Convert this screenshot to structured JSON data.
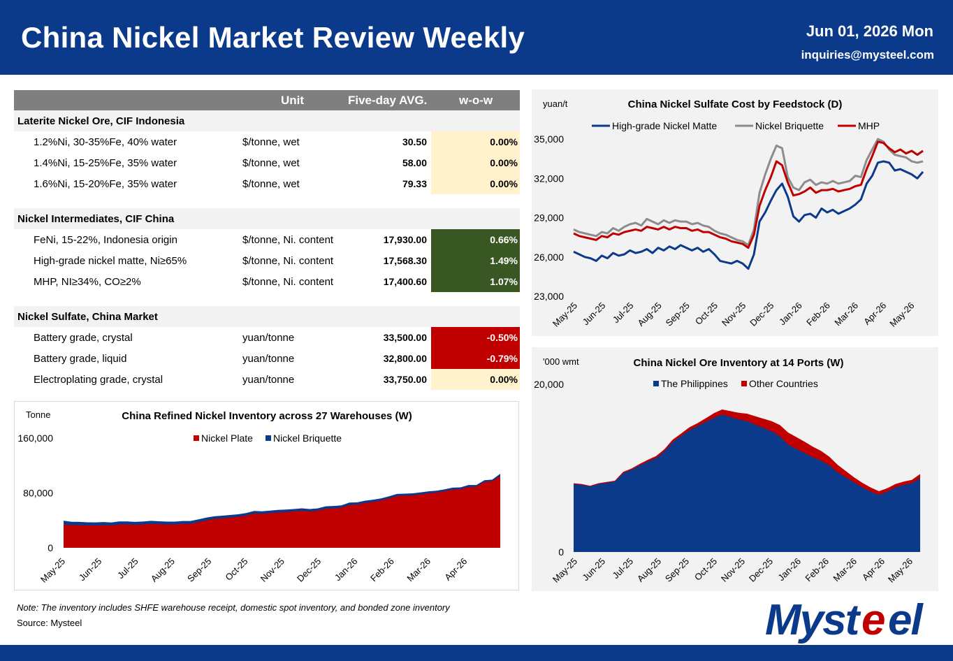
{
  "header": {
    "title": "China Nickel Market Review Weekly",
    "date": "Jun 01, 2026 Mon",
    "email": "inquiries@mysteel.com"
  },
  "table": {
    "headers": {
      "unit": "Unit",
      "avg": "Five-day AVG.",
      "wow": "w-o-w"
    },
    "sections": [
      {
        "title": "Laterite Nickel Ore, CIF Indonesia",
        "rows": [
          {
            "name": "1.2%Ni, 30-35%Fe, 40% water",
            "unit": "$/tonne, wet",
            "avg": "30.50",
            "wow": "0.00%",
            "trend": "flat"
          },
          {
            "name": "1.4%Ni, 15-25%Fe, 35% water",
            "unit": "$/tonne, wet",
            "avg": "58.00",
            "wow": "0.00%",
            "trend": "flat"
          },
          {
            "name": "1.6%Ni, 15-20%Fe, 35% water",
            "unit": "$/tonne, wet",
            "avg": "79.33",
            "wow": "0.00%",
            "trend": "flat"
          }
        ]
      },
      {
        "title": "Nickel Intermediates, CIF China",
        "rows": [
          {
            "name": "FeNi, 15-22%, Indonesia origin",
            "unit": "$/tonne, Ni. content",
            "avg": "17,930.00",
            "wow": "0.66%",
            "trend": "up"
          },
          {
            "name": "High-grade nickel matte, Ni≥65%",
            "unit": "$/tonne, Ni. content",
            "avg": "17,568.30",
            "wow": "1.49%",
            "trend": "up"
          },
          {
            "name": "MHP, NI≥34%, CO≥2%",
            "unit": "$/tonne, Ni. content",
            "avg": "17,400.60",
            "wow": "1.07%",
            "trend": "up"
          }
        ]
      },
      {
        "title": "Nickel Sulfate, China Market",
        "rows": [
          {
            "name": "Battery grade, crystal",
            "unit": "yuan/tonne",
            "avg": "33,500.00",
            "wow": "-0.50%",
            "trend": "down"
          },
          {
            "name": "Battery grade, liquid",
            "unit": "yuan/tonne",
            "avg": "32,800.00",
            "wow": "-0.79%",
            "trend": "down"
          },
          {
            "name": "Electroplating grade, crystal",
            "unit": "yuan/tonne",
            "avg": "33,750.00",
            "wow": "0.00%",
            "trend": "flat"
          }
        ]
      }
    ]
  },
  "colors": {
    "header": "#0b3a8a",
    "flat": "#fff2cc",
    "up": "#385723",
    "down": "#c00000",
    "navy": "#0b3a8a",
    "red": "#c00000",
    "grey": "#7f7f7f"
  },
  "footer": {
    "note": "Note: The inventory includes SHFE warehouse receipt, domestic spot inventory, and bonded zone inventory",
    "source": "Source: Mysteel",
    "logo": "Mysteel"
  },
  "chart_data": [
    {
      "id": "refined",
      "type": "area",
      "title": "China Refined Nickel Inventory across 27 Warehouses (W)",
      "unit_label": "Tonne",
      "ylim": [
        0,
        160000
      ],
      "yticks": [
        "0",
        "80,000",
        "160,000"
      ],
      "xticks": [
        "May-25",
        "Jun-25",
        "Jul-25",
        "Aug-25",
        "Sep-25",
        "Oct-25",
        "Nov-25",
        "Dec-25",
        "Jan-26",
        "Feb-26",
        "Mar-26",
        "Apr-26"
      ],
      "stacked": true,
      "legend": "top",
      "series": [
        {
          "name": "Nickel Plate",
          "color": "#c00000",
          "values": [
            34000,
            33000,
            33000,
            32500,
            32500,
            33000,
            32500,
            34000,
            34000,
            33500,
            34000,
            35000,
            34500,
            34000,
            34000,
            35000,
            35000,
            37500,
            40000,
            42000,
            43000,
            44000,
            45000,
            47000,
            50000,
            49500,
            50500,
            51500,
            52000,
            53000,
            54000,
            53000,
            54000,
            57000,
            57500,
            58500,
            62500,
            63000,
            65500,
            67000,
            69000,
            72000,
            75500,
            76000,
            76500,
            78000,
            79500,
            80500,
            82500,
            85000,
            85500,
            89000,
            89000,
            96000,
            97000,
            105000
          ]
        },
        {
          "name": "Nickel Briquette",
          "color": "#0b3a8a",
          "values": [
            5500,
            5000,
            4800,
            4700,
            4600,
            4600,
            4500,
            4400,
            4400,
            4300,
            4300,
            4300,
            4200,
            4200,
            4200,
            4100,
            4100,
            4000,
            4000,
            4000,
            3900,
            3900,
            3900,
            3800,
            3800,
            3800,
            3700,
            3700,
            3700,
            3600,
            3600,
            3600,
            3500,
            3500,
            3500,
            3400,
            3400,
            3300,
            3300,
            3200,
            3200,
            3100,
            3100,
            3000,
            3000,
            2900,
            2900,
            2800,
            2800,
            2700,
            2700,
            2600,
            2600,
            2500,
            2500,
            3000
          ]
        }
      ]
    },
    {
      "id": "sulfate",
      "type": "line",
      "title": "China Nickel Sulfate Cost by Feedstock (D)",
      "unit_label": "yuan/t",
      "ylim": [
        23000,
        35000
      ],
      "yticks": [
        "23,000",
        "26,000",
        "29,000",
        "32,000",
        "35,000"
      ],
      "xticks": [
        "May-25",
        "Jun-25",
        "Jul-25",
        "Aug-25",
        "Sep-25",
        "Oct-25",
        "Nov-25",
        "Dec-25",
        "Jan-26",
        "Feb-26",
        "Mar-26",
        "Apr-26",
        "May-26"
      ],
      "legend": "top",
      "series": [
        {
          "name": "High-grade Nickel Matte",
          "color": "#0b3a8a",
          "values": [
            26400,
            26200,
            26000,
            25900,
            25700,
            26100,
            25900,
            26300,
            26100,
            26200,
            26500,
            26300,
            26400,
            26600,
            26300,
            26700,
            26500,
            26800,
            26600,
            26900,
            26700,
            26500,
            26700,
            26400,
            26600,
            26200,
            25700,
            25600,
            25500,
            25700,
            25500,
            25100,
            26200,
            28700,
            29400,
            30300,
            31100,
            31600,
            30600,
            29100,
            28700,
            29200,
            29300,
            29000,
            29700,
            29400,
            29600,
            29300,
            29500,
            29700,
            30000,
            30400,
            31600,
            32200,
            33200,
            33300,
            33200,
            32600,
            32700,
            32500,
            32300,
            32000,
            32500
          ]
        },
        {
          "name": "Nickel Briquette",
          "color": "#8c8c8c",
          "values": [
            28100,
            27900,
            27800,
            27700,
            27600,
            27900,
            27800,
            28200,
            28000,
            28300,
            28500,
            28600,
            28400,
            28900,
            28700,
            28500,
            28800,
            28600,
            28800,
            28700,
            28700,
            28500,
            28600,
            28400,
            28300,
            28000,
            27800,
            27700,
            27500,
            27300,
            27200,
            26900,
            28100,
            30900,
            32300,
            33500,
            34500,
            34300,
            32100,
            31300,
            31100,
            31700,
            31900,
            31500,
            31700,
            31600,
            31800,
            31600,
            31700,
            31800,
            32200,
            32100,
            33400,
            34200,
            35000,
            34800,
            34200,
            33800,
            33700,
            33600,
            33300,
            33200,
            33300
          ]
        },
        {
          "name": "MHP",
          "color": "#c00000",
          "values": [
            27800,
            27600,
            27500,
            27400,
            27300,
            27600,
            27500,
            27800,
            27700,
            27900,
            28000,
            28100,
            28000,
            28300,
            28200,
            28100,
            28300,
            28100,
            28300,
            28200,
            28200,
            28000,
            28100,
            27900,
            27900,
            27700,
            27500,
            27400,
            27200,
            27100,
            27000,
            26700,
            27700,
            29900,
            31100,
            32100,
            33300,
            33000,
            31700,
            30700,
            30800,
            31000,
            31300,
            30900,
            31100,
            31100,
            31200,
            31000,
            31100,
            31200,
            31400,
            31500,
            32700,
            33700,
            34800,
            34700,
            34300,
            34000,
            34200,
            33900,
            34100,
            33800,
            34100
          ]
        }
      ]
    },
    {
      "id": "ore",
      "type": "area",
      "title": "China Nickel Ore Inventory at 14 Ports (W)",
      "unit_label": "'000 wmt",
      "ylim": [
        0,
        20000
      ],
      "yticks": [
        "0",
        "20,000"
      ],
      "xticks": [
        "May-25",
        "Jun-25",
        "Jul-25",
        "Aug-25",
        "Sep-25",
        "Oct-25",
        "Nov-25",
        "Dec-25",
        "Jan-26",
        "Feb-26",
        "Mar-26",
        "Apr-26",
        "May-26"
      ],
      "stacked": true,
      "legend": "top",
      "series": [
        {
          "name": "The Philippines",
          "color": "#0b3a8a",
          "values": [
            8100,
            8000,
            7800,
            8100,
            8250,
            8400,
            9400,
            9800,
            10300,
            10800,
            11200,
            12000,
            13100,
            13800,
            14500,
            15000,
            15500,
            16000,
            16400,
            16100,
            15800,
            15600,
            15200,
            14800,
            14400,
            13800,
            12800,
            12300,
            11800,
            11300,
            10900,
            10300,
            9500,
            8900,
            8300,
            7700,
            7200,
            6800,
            7200,
            7700,
            8000,
            8200,
            8800
          ]
        },
        {
          "name": "Other Countries",
          "color": "#c00000",
          "values": [
            100,
            100,
            100,
            100,
            100,
            100,
            150,
            150,
            200,
            200,
            250,
            250,
            300,
            300,
            350,
            350,
            450,
            550,
            600,
            700,
            800,
            900,
            1000,
            1100,
            1200,
            1350,
            1450,
            1400,
            1350,
            1250,
            1150,
            1050,
            900,
            750,
            600,
            550,
            500,
            450,
            400,
            400,
            400,
            400,
            500
          ]
        }
      ]
    }
  ]
}
